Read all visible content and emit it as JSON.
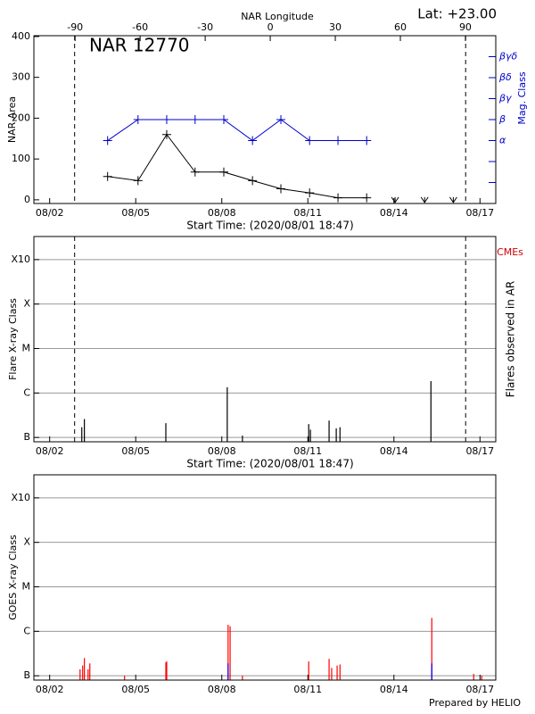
{
  "chart_data": [
    {
      "type": "line",
      "title": "NAR 12770",
      "annotation": "Lat: +23.00",
      "x2label": "NAR Longitude",
      "xlabel": "Start Time: (2020/08/01 18:47)",
      "ylabel": "NAR Area",
      "y2label": "Mag. Class",
      "y2color": "#0000cc",
      "xlim": [
        1.45,
        17.55
      ],
      "xticks": [
        {
          "value": 2,
          "label": "08/02"
        },
        {
          "value": 5,
          "label": "08/05"
        },
        {
          "value": 8,
          "label": "08/08"
        },
        {
          "value": 11,
          "label": "08/11"
        },
        {
          "value": 14,
          "label": "08/14"
        },
        {
          "value": 17,
          "label": "08/17"
        }
      ],
      "x2lim": [
        -109,
        104
      ],
      "x2ticks": [
        -90,
        -60,
        -30,
        0,
        30,
        60,
        90
      ],
      "ylim": [
        -9,
        402
      ],
      "yticks": [
        0,
        100,
        200,
        300,
        400
      ],
      "y2lim": [
        -2,
        6
      ],
      "y2ticks": [
        {
          "value": 1,
          "label": "α"
        },
        {
          "value": 2,
          "label": "β"
        },
        {
          "value": 3,
          "label": "βγ"
        },
        {
          "value": 4,
          "label": "βδ"
        },
        {
          "value": 5,
          "label": "βγδ"
        }
      ],
      "y2minorticks": [
        -1,
        0
      ],
      "vlines": [
        2.87,
        16.5
      ],
      "series": [
        {
          "color": "#000000",
          "marker": "+",
          "linestyle": "solid",
          "x": [
            4.02,
            5.08,
            6.08,
            7.07,
            8.07,
            9.07,
            10.06,
            11.06,
            12.05,
            13.05
          ],
          "values": [
            57,
            47,
            160,
            68,
            68,
            47,
            27,
            17,
            5,
            5
          ]
        },
        {
          "color": "#000000",
          "marker": "v",
          "linestyle": "none",
          "x": [
            14.04,
            15.07,
            16.07
          ],
          "values": [
            0,
            0,
            0
          ]
        },
        {
          "color": "#0000cc",
          "marker": "+",
          "linestyle": "solid",
          "axis": "y2",
          "x": [
            4.02,
            5.08,
            6.08,
            7.07,
            8.07,
            9.07,
            10.06,
            11.06,
            12.05,
            13.05
          ],
          "values": [
            1,
            2,
            2,
            2,
            2,
            1,
            2,
            1,
            1,
            1
          ]
        }
      ]
    },
    {
      "type": "stem",
      "xlabel": "Start Time: (2020/08/01 18:47)",
      "ylabel": "Flare X-ray Class",
      "y2label": "Flares observed in AR",
      "annotation": "CMEs",
      "annotation_color": "#cc0000",
      "log": true,
      "grid": true,
      "xlim": [
        1.45,
        17.55
      ],
      "xticks": [
        {
          "value": 2,
          "label": "08/02"
        },
        {
          "value": 5,
          "label": "08/05"
        },
        {
          "value": 8,
          "label": "08/08"
        },
        {
          "value": 11,
          "label": "08/11"
        },
        {
          "value": 14,
          "label": "08/14"
        },
        {
          "value": 17,
          "label": "08/17"
        }
      ],
      "ylim": [
        8e-08,
        0.0033
      ],
      "yticks": [
        {
          "value": 1e-07,
          "label": "B"
        },
        {
          "value": 1e-06,
          "label": "C"
        },
        {
          "value": 1e-05,
          "label": "M"
        },
        {
          "value": 0.0001,
          "label": "X"
        },
        {
          "value": 0.001,
          "label": "X10"
        }
      ],
      "vlines": [
        2.87,
        16.5
      ],
      "series": [
        {
          "color": "#000000",
          "x": [
            3.12,
            3.21,
            6.05,
            8.19,
            8.72,
            11.03,
            11.09,
            11.74,
            11.99,
            12.12,
            15.29
          ],
          "values": [
            1.7e-07,
            2.6e-07,
            2.1e-07,
            1.35e-06,
            1.1e-07,
            2e-07,
            1.5e-07,
            2.4e-07,
            1.6e-07,
            1.7e-07,
            1.85e-06
          ]
        }
      ]
    },
    {
      "type": "stem",
      "ylabel": "GOES X-ray Class",
      "footer": "Prepared by HELIO",
      "log": true,
      "grid": true,
      "xlim": [
        1.45,
        17.55
      ],
      "xticks": [
        {
          "value": 2,
          "label": "08/02"
        },
        {
          "value": 5,
          "label": "08/05"
        },
        {
          "value": 8,
          "label": "08/08"
        },
        {
          "value": 11,
          "label": "08/11"
        },
        {
          "value": 14,
          "label": "08/14"
        },
        {
          "value": 17,
          "label": "08/17"
        }
      ],
      "ylim": [
        8e-08,
        0.0033
      ],
      "yticks": [
        {
          "value": 1e-07,
          "label": "B"
        },
        {
          "value": 1e-06,
          "label": "C"
        },
        {
          "value": 1e-05,
          "label": "M"
        },
        {
          "value": 0.0001,
          "label": "X"
        },
        {
          "value": 0.001,
          "label": "X10"
        }
      ],
      "series": [
        {
          "color": "#ff0000",
          "x": [
            3.06,
            3.15,
            3.21,
            3.34,
            3.4,
            4.61,
            6.05,
            6.08,
            8.22,
            8.29,
            8.72,
            11.03,
            11.74,
            11.83,
            12.02,
            12.12,
            15.32,
            16.78,
            17.06
          ],
          "values": [
            1.4e-07,
            1.7e-07,
            2.5e-07,
            1.4e-07,
            1.9e-07,
            1e-07,
            2e-07,
            2.1e-07,
            1.4e-06,
            1.3e-06,
            1e-07,
            2.1e-07,
            2.4e-07,
            1.5e-07,
            1.7e-07,
            1.8e-07,
            2e-06,
            1.1e-07,
            1e-07
          ]
        },
        {
          "color": "#0000ff",
          "x": [
            8.22,
            15.32
          ],
          "values": [
            1.9e-07,
            1.9e-07
          ]
        }
      ]
    }
  ]
}
